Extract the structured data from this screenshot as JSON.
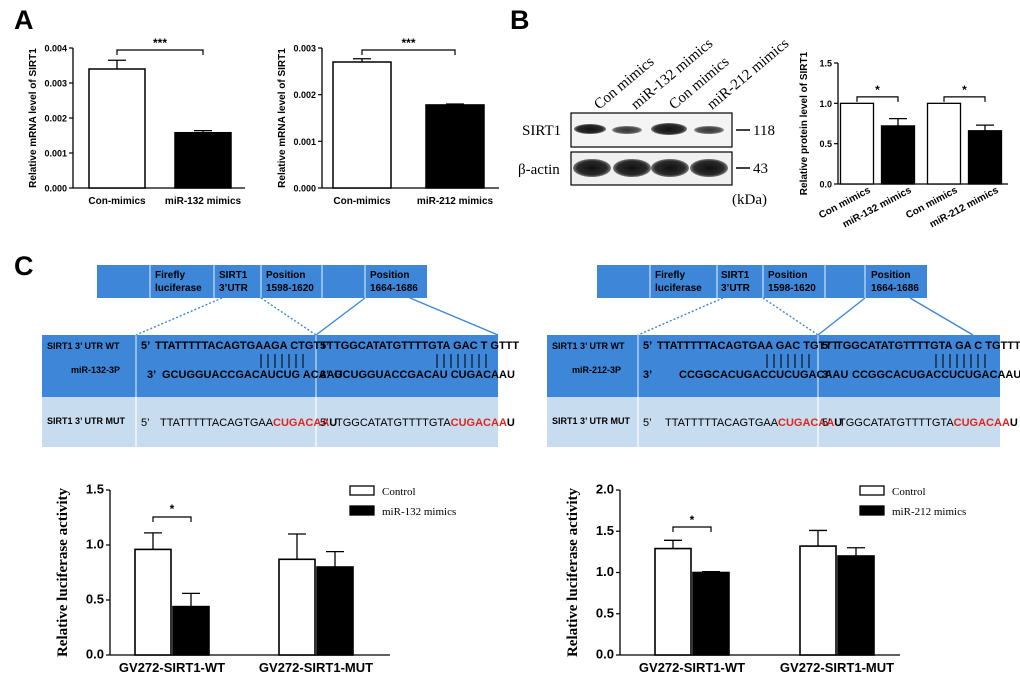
{
  "panels": {
    "a": "A",
    "b": "B",
    "c": "C"
  },
  "colors": {
    "box_blue": "#3d86d8",
    "mut_blue": "#c8dcef",
    "mutation_red": "#e0261c",
    "bar_black": "#000000",
    "bar_white": "#ffffff"
  },
  "chart_data": [
    {
      "id": "a1",
      "type": "bar",
      "categories": [
        "Con-mimics",
        "miR-132 mimics"
      ],
      "values": [
        0.0034,
        0.00158
      ],
      "errors": [
        0.00025,
        6e-05
      ],
      "fills": [
        "white",
        "black"
      ],
      "ylabel": "Relative mRNA level of SIRT1",
      "ylim": [
        0,
        0.004
      ],
      "ticks": [
        "0.000",
        "0.001",
        "0.002",
        "0.003",
        "0.004"
      ],
      "sig": "***"
    },
    {
      "id": "a2",
      "type": "bar",
      "categories": [
        "Con-mimics",
        "miR-212 mimics"
      ],
      "values": [
        0.0027,
        0.00178
      ],
      "errors": [
        7e-05,
        2e-05
      ],
      "fills": [
        "white",
        "black"
      ],
      "ylabel": "Relative mRNA level of SIRT1",
      "ylim": [
        0,
        0.003
      ],
      "ticks": [
        "0.000",
        "0.001",
        "0.002",
        "0.003"
      ],
      "sig": "***"
    },
    {
      "id": "b",
      "type": "bar",
      "categories": [
        "Con mimics",
        "miR-132 mimics",
        "Con mimics",
        "miR-212 mimics"
      ],
      "values": [
        1.0,
        0.72,
        1.0,
        0.66
      ],
      "errors": [
        0,
        0.09,
        0,
        0.07
      ],
      "fills": [
        "white",
        "black",
        "white",
        "black"
      ],
      "ylabel": "Relative protein level of SIRT1",
      "ylim": [
        0,
        1.5
      ],
      "ticks": [
        "0.0",
        "0.5",
        "1.0",
        "1.5"
      ],
      "sig": [
        "*",
        "*"
      ]
    },
    {
      "id": "c1",
      "type": "bar",
      "categories": [
        "GV272-SIRT1-WT",
        "GV272-SIRT1-MUT"
      ],
      "series": [
        {
          "name": "Control",
          "values": [
            0.96,
            0.87
          ],
          "errors": [
            0.15,
            0.23
          ]
        },
        {
          "name": "miR-132 mimics",
          "values": [
            0.44,
            0.8
          ],
          "errors": [
            0.12,
            0.14
          ]
        }
      ],
      "ylabel": "Relative luciferase activity",
      "ylim": [
        0,
        1.5
      ],
      "ticks": [
        "0.0",
        "0.5",
        "1.0",
        "1.5"
      ],
      "sig": "*",
      "legend": "top-right"
    },
    {
      "id": "c2",
      "type": "bar",
      "categories": [
        "GV272-SIRT1-WT",
        "GV272-SIRT1-MUT"
      ],
      "series": [
        {
          "name": "Control",
          "values": [
            1.29,
            1.32
          ],
          "errors": [
            0.1,
            0.19
          ]
        },
        {
          "name": "miR-212 mimics",
          "values": [
            1.0,
            1.2
          ],
          "errors": [
            0.01,
            0.1
          ]
        }
      ],
      "ylabel": "Relative luciferase activity",
      "ylim": [
        0,
        2.0
      ],
      "ticks": [
        "0.0",
        "0.5",
        "1.0",
        "1.5",
        "2.0"
      ],
      "sig": "*",
      "legend": "top-right"
    }
  ],
  "blot": {
    "lanes": [
      "Con mimics",
      "miR-132 mimics",
      "Con mimics",
      "miR-212 mimics"
    ],
    "proteins": [
      "SIRT1",
      "β-actin"
    ],
    "mw": [
      "118",
      "43"
    ],
    "unit": "(kDa)"
  },
  "construct": {
    "segments": [
      "Firefly",
      "luciferase",
      "SIRT1",
      "3’UTR",
      "Position",
      "1598-1620",
      "Position",
      "1664-1686"
    ]
  },
  "sequences": [
    {
      "wt_label": "SIRT1 3’ UTR  WT",
      "mir_label": "miR-132-3P",
      "mut_label": "SIRT1 3’  UTR MUT",
      "p5": "5’",
      "p3": "3’",
      "site1_wt": "TTATTTTTACAGTGAAGA CTGTTT",
      "site1_mir": "GCUGGUACCGACAUCUG ACAAU",
      "site2_wt": "TGGCATATGTTTTGTA GAC T GTTT",
      "site2_mir": "GCUGGUACCGACAU CUGACAAU",
      "site1_mut_black": "TTATTTTTACAGTGAA",
      "site2_mut_black": "TGGCATATGTTTTGTA",
      "mut_red": "CUGACAA",
      "mut_tail": "U"
    },
    {
      "wt_label": "SIRT1 3’ UTR  WT",
      "mir_label": "miR-212-3P",
      "mut_label": "SIRT1 3’  UTR  MUT",
      "p5": "5’",
      "p3": "3’",
      "site1_wt": "TTATTTTTACAGTGAA GAC TGTTT",
      "site1_mir": "CCGGCACUGACCUCUGACAAU",
      "site2_wt": "TGGCATATGTTTTGTA GA C TGTTT",
      "site2_mir": "CCGGCACUGACCUCUGACAAU",
      "site1_mut_black": "TTATTTTTACAGTGAA",
      "site2_mut_black": "TGGCATATGTTTTGTA",
      "mut_red": "CUGACAA",
      "mut_tail": "U"
    }
  ]
}
